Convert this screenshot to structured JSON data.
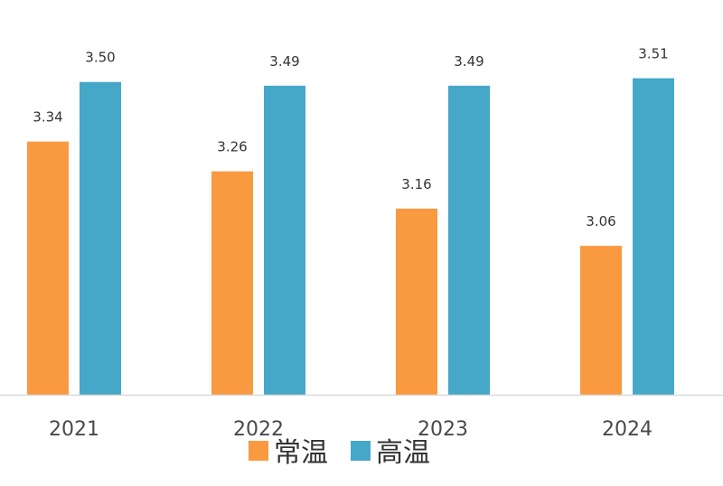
{
  "chart_data": {
    "type": "bar",
    "categories": [
      "2021",
      "2022",
      "2023",
      "2024"
    ],
    "series": [
      {
        "name": "常温",
        "color": "#F99A41",
        "values": [
          3.34,
          3.26,
          3.16,
          3.06
        ],
        "labels": [
          "3.34",
          "3.26",
          "3.16",
          "3.06"
        ]
      },
      {
        "name": "高温",
        "color": "#46A8C9",
        "values": [
          3.5,
          3.49,
          3.49,
          3.51
        ],
        "labels": [
          "3.50",
          "3.49",
          "3.49",
          "3.51"
        ]
      }
    ],
    "title": "",
    "xlabel": "",
    "ylabel": "",
    "ylim": [
      2.66,
      3.56
    ],
    "grid": false,
    "legend_position": "bottom",
    "axis_line_color": "#DADADA"
  }
}
